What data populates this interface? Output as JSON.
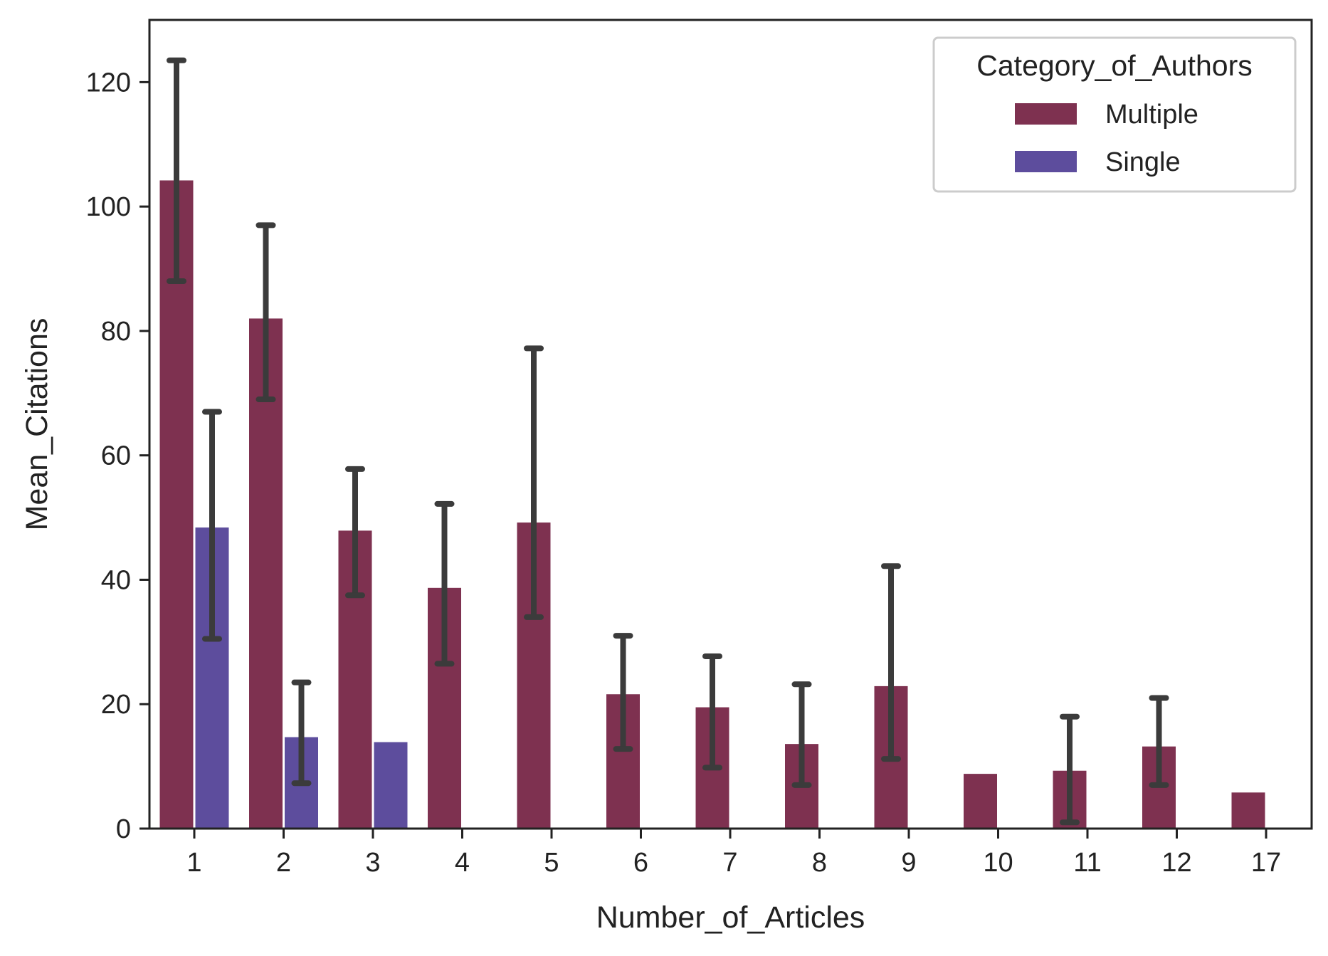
{
  "chart_data": {
    "type": "bar",
    "title": "",
    "xlabel": "Number_of_Articles",
    "ylabel": "Mean_Citations",
    "categories": [
      "1",
      "2",
      "3",
      "4",
      "5",
      "6",
      "7",
      "8",
      "9",
      "10",
      "11",
      "12",
      "17"
    ],
    "ylim": [
      0,
      130
    ],
    "yticks": [
      0,
      20,
      40,
      60,
      80,
      100,
      120
    ],
    "grid": false,
    "legend": {
      "title": "Category_of_Authors",
      "position": "top-right"
    },
    "series": [
      {
        "name": "Multiple",
        "color": "#7e3150",
        "values": [
          104.2,
          82.0,
          47.9,
          38.7,
          49.2,
          21.6,
          19.5,
          13.6,
          22.9,
          8.8,
          9.3,
          13.2,
          5.8
        ],
        "error_low": [
          88.0,
          69.0,
          37.5,
          26.5,
          34.0,
          12.8,
          9.8,
          7.0,
          11.2,
          null,
          1.0,
          7.0,
          null
        ],
        "error_high": [
          123.5,
          97.0,
          57.8,
          52.2,
          77.2,
          31.0,
          27.7,
          23.2,
          42.2,
          null,
          18.0,
          21.0,
          null
        ]
      },
      {
        "name": "Single",
        "color": "#5d4d9d",
        "values": [
          48.4,
          14.7,
          13.9,
          null,
          null,
          null,
          null,
          null,
          null,
          null,
          null,
          null,
          null
        ],
        "error_low": [
          30.5,
          7.3,
          null,
          null,
          null,
          null,
          null,
          null,
          null,
          null,
          null,
          null,
          null
        ],
        "error_high": [
          67.0,
          23.5,
          null,
          null,
          null,
          null,
          null,
          null,
          null,
          null,
          null,
          null,
          null
        ]
      }
    ],
    "error_bar_color": "#3b3b3b"
  }
}
